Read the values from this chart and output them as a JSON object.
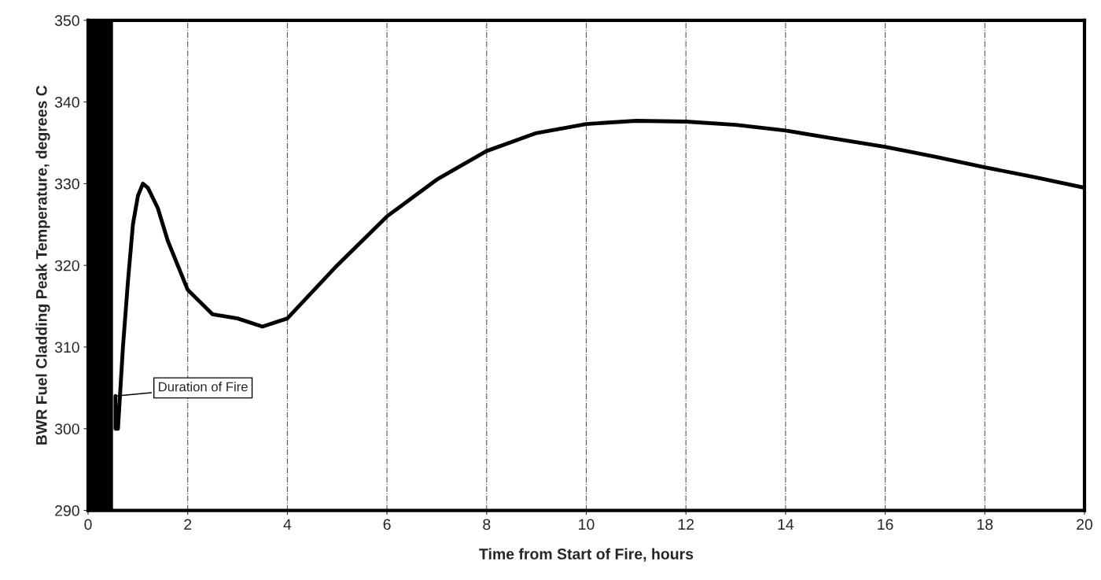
{
  "chart_data": {
    "type": "line",
    "xlabel": "Time from Start of Fire, hours",
    "ylabel": "BWR Fuel Cladding Peak Temperature, degrees C",
    "x": [
      0.55,
      0.55,
      0.6,
      0.7,
      0.8,
      0.9,
      1.0,
      1.1,
      1.2,
      1.4,
      1.6,
      2.0,
      2.5,
      3.0,
      3.5,
      4.0,
      5,
      6,
      7,
      8,
      9,
      10,
      11,
      12,
      13,
      14,
      15,
      16,
      17,
      18,
      19,
      20
    ],
    "series": [
      {
        "color": "#000000",
        "values": [
          304,
          300,
          300,
          310,
          318,
          325,
          328.5,
          330,
          329.5,
          327,
          323,
          317,
          314,
          313.5,
          312.5,
          313.5,
          320,
          326,
          330.5,
          334,
          336.2,
          337.3,
          337.7,
          337.6,
          337.2,
          336.5,
          335.5,
          334.5,
          333.3,
          332,
          330.8,
          329.5
        ]
      }
    ],
    "xlim": [
      0,
      20
    ],
    "ylim": [
      290,
      350
    ],
    "xticks": [
      0,
      2,
      4,
      6,
      8,
      10,
      12,
      14,
      16,
      18,
      20
    ],
    "yticks": [
      290,
      300,
      310,
      320,
      330,
      340,
      350
    ],
    "grid": "x",
    "line_style": "solid",
    "bands": [
      {
        "axis": "x",
        "from": 0,
        "to": 0.5,
        "label": "Duration of Fire",
        "color": "#000000"
      }
    ]
  }
}
